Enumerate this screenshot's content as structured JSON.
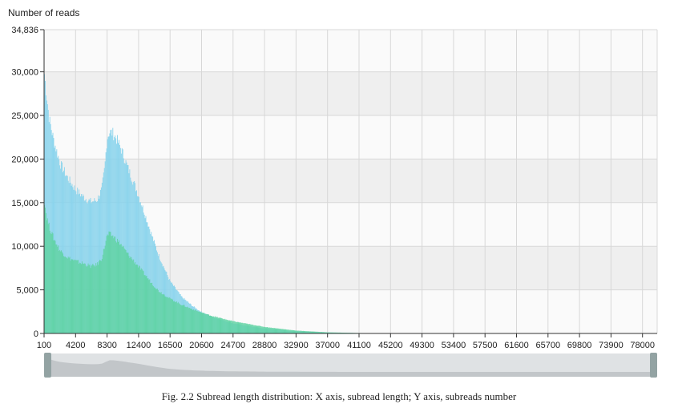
{
  "chart_data": {
    "type": "bar",
    "ylabel": "Number of reads",
    "ylim": [
      0,
      34836
    ],
    "y_ticks": [
      {
        "value": 34836,
        "label": "34,836"
      },
      {
        "value": 30000,
        "label": "30,000"
      },
      {
        "value": 25000,
        "label": "25,000"
      },
      {
        "value": 20000,
        "label": "20,000"
      },
      {
        "value": 15000,
        "label": "15,000"
      },
      {
        "value": 10000,
        "label": "10,000"
      },
      {
        "value": 5000,
        "label": "5,000"
      },
      {
        "value": 0,
        "label": "0"
      }
    ],
    "xlim": [
      100,
      80000
    ],
    "x_ticks": [
      100,
      4200,
      8300,
      12400,
      16500,
      20600,
      24700,
      28800,
      32900,
      37000,
      41100,
      45200,
      49300,
      53400,
      57500,
      61600,
      65700,
      69800,
      73900,
      78000
    ],
    "grid": true,
    "series": [
      {
        "color": "#87d3ec",
        "x": [
          100,
          400,
          800,
          1400,
          2200,
          3200,
          4200,
          5300,
          6200,
          7000,
          7600,
          8000,
          8300,
          8600,
          9000,
          9500,
          10200,
          11000,
          12000,
          13000,
          14000,
          15000,
          16500,
          18000,
          19500,
          20600,
          22000,
          24700,
          28800,
          32900,
          37000,
          41100,
          45200,
          78000
        ],
        "values": [
          30200,
          27500,
          24500,
          22000,
          19500,
          17800,
          16500,
          15600,
          15100,
          15300,
          16500,
          19000,
          22400,
          23100,
          23000,
          22400,
          21000,
          19000,
          16800,
          14300,
          11600,
          9000,
          6000,
          4200,
          3100,
          2450,
          1900,
          1150,
          550,
          250,
          100,
          40,
          15,
          0
        ]
      },
      {
        "color": "#5fd3a3",
        "x": [
          100,
          400,
          800,
          1400,
          2200,
          3200,
          4200,
          5300,
          6200,
          7000,
          7600,
          8000,
          8300,
          8600,
          9000,
          9500,
          10200,
          11000,
          12000,
          13000,
          14000,
          15000,
          16500,
          18000,
          19500,
          20600,
          22000,
          24700,
          28800,
          32900,
          37000,
          41100,
          45200,
          78000
        ],
        "values": [
          15500,
          13500,
          12200,
          10800,
          9500,
          8700,
          8300,
          8000,
          7700,
          7900,
          8600,
          10000,
          11200,
          11400,
          11200,
          10800,
          10100,
          9100,
          8100,
          7000,
          5900,
          4900,
          4000,
          3300,
          2750,
          2400,
          2000,
          1400,
          750,
          330,
          130,
          50,
          15,
          0
        ]
      }
    ],
    "navigator": {
      "range": [
        100,
        80000
      ]
    },
    "caption": "Fig. 2.2 Subread length distribution: X axis, subread length; Y axis, subreads number"
  },
  "colors": {
    "band_dark": "#efefef",
    "band_light": "#fafafa",
    "grid": "#d8d8d8",
    "axis": "#333333",
    "navigator_bg": "#dfe2e4",
    "navigator_fill": "#c2c6c9",
    "navigator_handle": "#93a3a3"
  }
}
